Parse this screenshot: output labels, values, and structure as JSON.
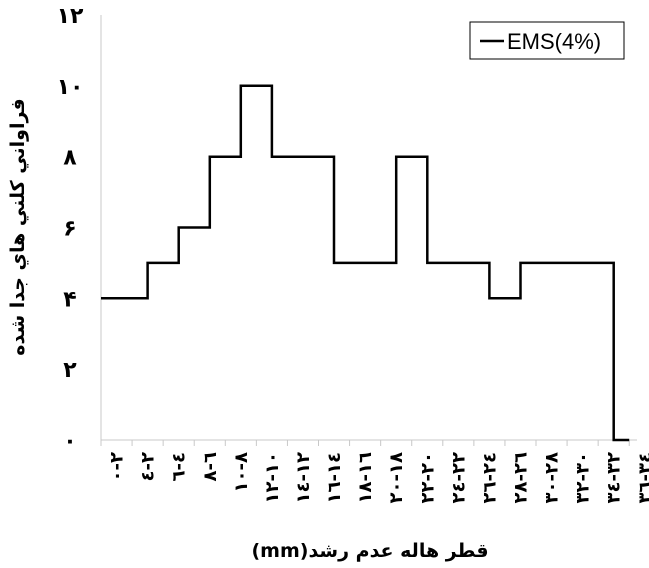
{
  "chart_data": {
    "type": "line",
    "step": true,
    "x_tick_labels": [
      "٢-٠",
      "٢-٤",
      "٤-٦",
      "٦-٨",
      "٨-١٠",
      "١٠-١٢",
      "١٢-١٤",
      "١٤-١٦",
      "١٦-١٨",
      "١٨-٢٠",
      "٢٠-٢٢",
      "٢٢-٢٤",
      "٢٤-٢٦",
      "٢٦-٢٨",
      "٢٨-٣٠",
      "٣٠-٣٢",
      "٣٢-٣٤",
      "٣٤-٣٦"
    ],
    "x_edges": [
      0,
      2,
      4,
      6,
      8,
      10,
      12,
      14,
      16,
      18,
      20,
      22,
      24,
      26,
      28,
      30,
      32,
      34,
      36
    ],
    "series": [
      {
        "name": "EMS(4%)",
        "color": "#000000",
        "x": [
          0,
          3,
          3,
          5,
          5,
          7,
          7,
          9,
          9,
          11,
          11,
          15,
          15,
          19,
          19,
          21,
          21,
          25,
          25,
          27,
          27,
          33,
          33,
          34
        ],
        "y": [
          4,
          4,
          5,
          5,
          6,
          6,
          8,
          8,
          10,
          10,
          8,
          8,
          5,
          5,
          8,
          8,
          5,
          5,
          4,
          4,
          5,
          5,
          0,
          0
        ]
      }
    ],
    "ylim": [
      0,
      12
    ],
    "xlim": [
      0,
      34.5
    ],
    "yticks": [
      0,
      2,
      4,
      6,
      8,
      10,
      12
    ],
    "ytick_labels": [
      "٠",
      "٢",
      "۴",
      "۶",
      "٨",
      "١٠",
      "١٢"
    ],
    "ylabel": "فراواني كلني هاي جدا شده",
    "xlabel": "قطر هاله عدم رشد(mm)",
    "legend_position": "top-right",
    "grid": false
  }
}
